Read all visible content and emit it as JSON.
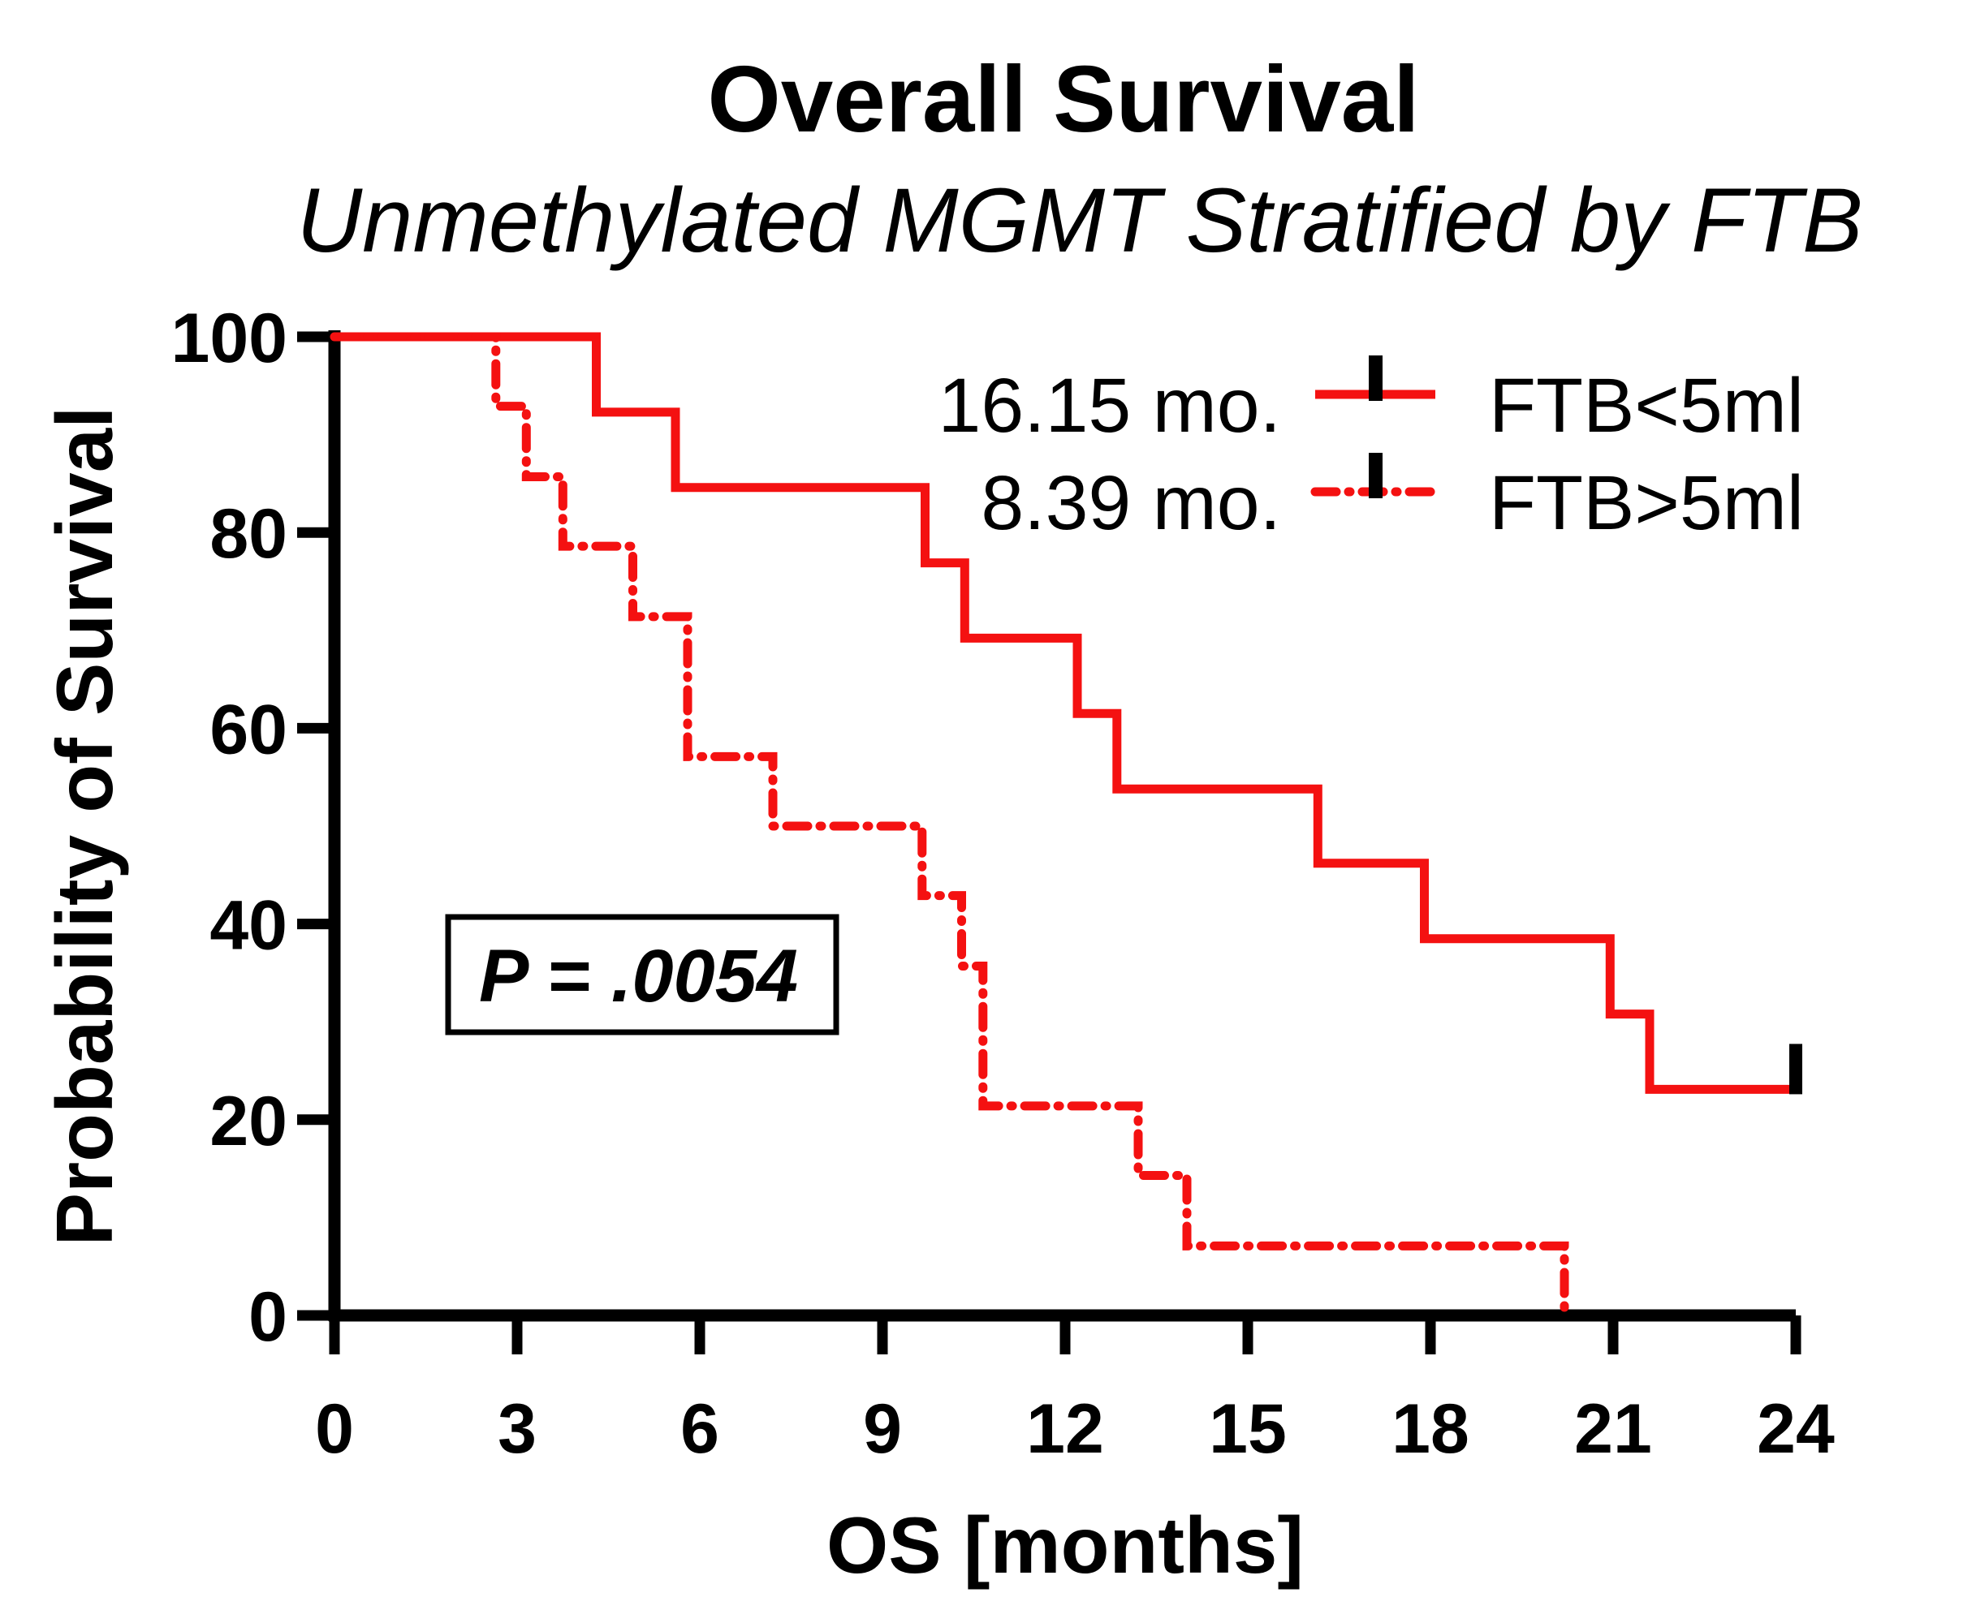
{
  "title": "Overall Survival",
  "subtitle": "Unmethylated MGMT Stratified by FTB",
  "p_value": "P = .0054",
  "colors": {
    "curve_red": "#F41111",
    "axis_black": "#000000",
    "background": "#FFFFFF"
  },
  "legend": [
    {
      "median": "16.15 mo.",
      "label": "FTB<5ml",
      "line_style": "solid"
    },
    {
      "median": "8.39 mo.",
      "label": "FTB>5ml",
      "line_style": "dash-dot"
    }
  ],
  "chart_data": {
    "type": "line",
    "subtype": "kaplan-meier-step",
    "title": "Overall Survival",
    "subtitle": "Unmethylated MGMT Stratified by FTB",
    "xlabel": "OS [months]",
    "ylabel": "Probability of Survival",
    "xlim": [
      0,
      24
    ],
    "ylim": [
      0,
      100
    ],
    "x_ticks": [
      0,
      3,
      6,
      9,
      12,
      15,
      18,
      21,
      24
    ],
    "y_ticks": [
      0,
      20,
      40,
      60,
      80,
      100
    ],
    "grid": false,
    "legend_position": "top-right-inside",
    "annotation": "P = .0054",
    "series": [
      {
        "name": "FTB<5ml",
        "median_months": 16.15,
        "style": "solid",
        "points": [
          [
            0,
            100
          ],
          [
            4.3,
            100
          ],
          [
            4.3,
            92.3
          ],
          [
            5.6,
            92.3
          ],
          [
            5.6,
            84.6
          ],
          [
            9.7,
            84.6
          ],
          [
            9.7,
            76.9
          ],
          [
            10.35,
            76.9
          ],
          [
            10.35,
            69.2
          ],
          [
            12.2,
            69.2
          ],
          [
            12.2,
            61.5
          ],
          [
            12.85,
            61.5
          ],
          [
            12.85,
            53.8
          ],
          [
            16.15,
            53.8
          ],
          [
            16.15,
            46.2
          ],
          [
            17.9,
            46.2
          ],
          [
            17.9,
            38.5
          ],
          [
            20.95,
            38.5
          ],
          [
            20.95,
            30.8
          ],
          [
            21.6,
            30.8
          ],
          [
            21.6,
            23.1
          ],
          [
            24,
            23.1
          ]
        ],
        "censored_points": [
          [
            24,
            23.1
          ]
        ]
      },
      {
        "name": "FTB>5ml",
        "median_months": 8.39,
        "style": "dash-dot",
        "points": [
          [
            0,
            100
          ],
          [
            2.65,
            100
          ],
          [
            2.65,
            92.9
          ],
          [
            3.15,
            92.9
          ],
          [
            3.15,
            85.7
          ],
          [
            3.75,
            85.7
          ],
          [
            3.75,
            78.6
          ],
          [
            4.9,
            78.6
          ],
          [
            4.9,
            71.4
          ],
          [
            5.8,
            71.4
          ],
          [
            5.8,
            57.1
          ],
          [
            7.2,
            57.1
          ],
          [
            7.2,
            50
          ],
          [
            9.65,
            50
          ],
          [
            9.65,
            42.9
          ],
          [
            10.3,
            42.9
          ],
          [
            10.3,
            35.7
          ],
          [
            10.65,
            35.7
          ],
          [
            10.65,
            21.4
          ],
          [
            13.2,
            21.4
          ],
          [
            13.2,
            14.3
          ],
          [
            14.0,
            14.3
          ],
          [
            14.0,
            7.1
          ],
          [
            20.2,
            7.1
          ],
          [
            20.2,
            0
          ]
        ],
        "censored_points": []
      }
    ]
  }
}
